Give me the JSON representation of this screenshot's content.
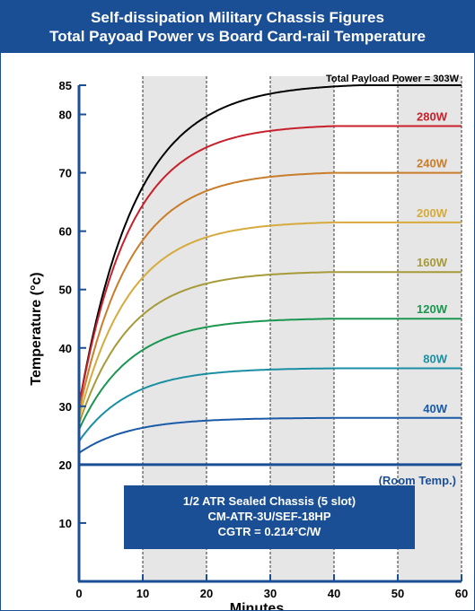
{
  "title": {
    "line1": "Self-dissipation Military Chassis Figures",
    "line2": "Total Payoad Power vs Board Card-rail Temperature"
  },
  "chart_data": {
    "type": "line",
    "xlabel": "Minutes",
    "ylabel": "Temperature (°c)",
    "xlim": [
      0,
      60
    ],
    "ylim": [
      0,
      85
    ],
    "x_ticks": [
      0,
      10,
      20,
      30,
      40,
      50,
      60
    ],
    "y_ticks": [
      10,
      20,
      30,
      40,
      50,
      60,
      70,
      80,
      85
    ],
    "shaded_bands": [
      [
        10,
        20
      ],
      [
        30,
        40
      ],
      [
        50,
        60
      ]
    ],
    "room_temp": {
      "value": 20,
      "label": "(Room Temp.)",
      "color": "#1a4f96"
    },
    "info_box": {
      "lines": [
        "1/2 ATR Sealed Chassis (5 slot)",
        "CM-ATR-3U/SEF-18HP",
        "CGTR = 0.214°C/W"
      ],
      "color": "#1a4f96"
    },
    "series": [
      {
        "name": "Total Payload Power = 303W",
        "start": 30,
        "final": 85,
        "plateau_x": 44,
        "color": "#000000"
      },
      {
        "name": "280W",
        "start": 30,
        "final": 78,
        "plateau_x": 40,
        "color": "#c8202b"
      },
      {
        "name": "240W",
        "start": 29,
        "final": 70,
        "plateau_x": 40,
        "color": "#c97d2a"
      },
      {
        "name": "200W",
        "start": 28,
        "final": 61.5,
        "plateau_x": 40,
        "color": "#d6aa3c"
      },
      {
        "name": "160W",
        "start": 27,
        "final": 53,
        "plateau_x": 40,
        "color": "#a79a3a"
      },
      {
        "name": "120W",
        "start": 26,
        "final": 45,
        "plateau_x": 40,
        "color": "#1b9650"
      },
      {
        "name": "80W",
        "start": 24,
        "final": 36.5,
        "plateau_x": 40,
        "color": "#1a8fa3"
      },
      {
        "name": "40W",
        "start": 22,
        "final": 28,
        "plateau_x": 40,
        "color": "#1a5aa8"
      }
    ]
  }
}
